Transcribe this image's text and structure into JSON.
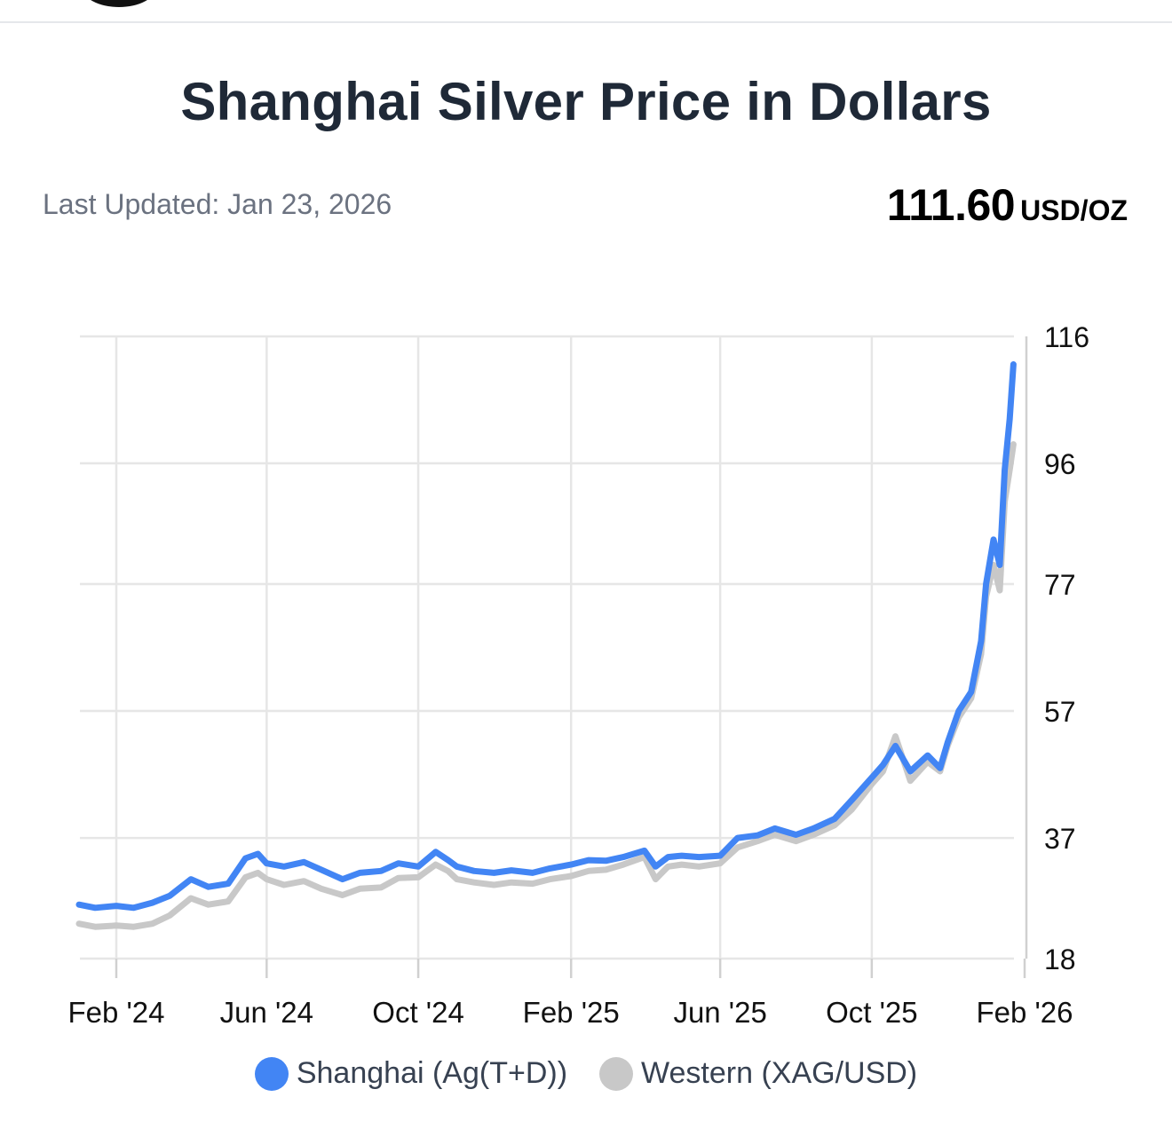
{
  "title": "Shanghai Silver Price in Dollars",
  "last_updated": "Last Updated: Jan 23, 2026",
  "price": {
    "value": "111.60",
    "unit": "USD/OZ"
  },
  "colors": {
    "shanghai": "#4285f4",
    "western": "#c8c8c8",
    "grid": "#e6e6e6",
    "text": "#1f2937"
  },
  "chart_data": {
    "type": "line",
    "title": "Shanghai Silver Price in Dollars",
    "xlabel": "",
    "ylabel": "",
    "y_axis_side": "right",
    "ylim": [
      18,
      116
    ],
    "y_ticks": [
      "116",
      "96",
      "77",
      "57",
      "37",
      "18"
    ],
    "y_tick_values": [
      116,
      96,
      77,
      57,
      37,
      18
    ],
    "x_ticks": [
      "Feb '24",
      "Jun '24",
      "Oct '24",
      "Feb '25",
      "Jun '25",
      "Oct '25",
      "Feb '26"
    ],
    "x_tick_values": [
      "2024-02-01",
      "2024-06-01",
      "2024-10-01",
      "2025-02-01",
      "2025-06-01",
      "2025-10-01",
      "2026-02-01"
    ],
    "xlim": [
      "2024-01-02",
      "2026-02-01"
    ],
    "grid": true,
    "legend": "bottom",
    "series": [
      {
        "name": "Shanghai (Ag(T+D))",
        "color": "#4285f4",
        "x": [
          "2024-01-02",
          "2024-01-15",
          "2024-02-01",
          "2024-02-15",
          "2024-03-01",
          "2024-03-15",
          "2024-04-01",
          "2024-04-15",
          "2024-05-01",
          "2024-05-15",
          "2024-05-25",
          "2024-06-01",
          "2024-06-15",
          "2024-07-01",
          "2024-07-15",
          "2024-08-01",
          "2024-08-15",
          "2024-09-01",
          "2024-09-15",
          "2024-10-01",
          "2024-10-15",
          "2024-10-25",
          "2024-11-01",
          "2024-11-15",
          "2024-12-01",
          "2024-12-15",
          "2025-01-01",
          "2025-01-15",
          "2025-02-01",
          "2025-02-15",
          "2025-03-01",
          "2025-03-15",
          "2025-04-01",
          "2025-04-10",
          "2025-04-20",
          "2025-05-01",
          "2025-05-15",
          "2025-06-01",
          "2025-06-15",
          "2025-07-01",
          "2025-07-15",
          "2025-08-01",
          "2025-08-15",
          "2025-09-01",
          "2025-09-15",
          "2025-10-01",
          "2025-10-10",
          "2025-10-20",
          "2025-11-01",
          "2025-11-15",
          "2025-11-25",
          "2025-12-01",
          "2025-12-10",
          "2025-12-20",
          "2025-12-28",
          "2026-01-01",
          "2026-01-07",
          "2026-01-12",
          "2026-01-16",
          "2026-01-20",
          "2026-01-23"
        ],
        "y": [
          26.5,
          26.0,
          26.3,
          26.0,
          26.8,
          27.9,
          30.5,
          29.3,
          29.8,
          33.8,
          34.5,
          33.0,
          32.5,
          33.2,
          32.0,
          30.5,
          31.5,
          31.8,
          33.0,
          32.5,
          34.8,
          33.5,
          32.5,
          31.8,
          31.5,
          31.9,
          31.5,
          32.2,
          32.8,
          33.5,
          33.4,
          34.0,
          35.0,
          32.5,
          34.0,
          34.2,
          34.0,
          34.2,
          37.0,
          37.4,
          38.5,
          37.5,
          38.5,
          40.0,
          43.0,
          46.5,
          48.5,
          51.5,
          47.5,
          50.0,
          48.0,
          52.0,
          57.0,
          60.0,
          68.0,
          77.0,
          84.0,
          80.0,
          95.0,
          103.0,
          111.6
        ]
      },
      {
        "name": "Western (XAG/USD)",
        "color": "#c8c8c8",
        "x": [
          "2024-01-02",
          "2024-01-15",
          "2024-02-01",
          "2024-02-15",
          "2024-03-01",
          "2024-03-15",
          "2024-04-01",
          "2024-04-15",
          "2024-05-01",
          "2024-05-15",
          "2024-05-25",
          "2024-06-01",
          "2024-06-15",
          "2024-07-01",
          "2024-07-15",
          "2024-08-01",
          "2024-08-15",
          "2024-09-01",
          "2024-09-15",
          "2024-10-01",
          "2024-10-15",
          "2024-10-25",
          "2024-11-01",
          "2024-11-15",
          "2024-12-01",
          "2024-12-15",
          "2025-01-01",
          "2025-01-15",
          "2025-02-01",
          "2025-02-15",
          "2025-03-01",
          "2025-03-15",
          "2025-04-01",
          "2025-04-10",
          "2025-04-20",
          "2025-05-01",
          "2025-05-15",
          "2025-06-01",
          "2025-06-15",
          "2025-07-01",
          "2025-07-15",
          "2025-08-01",
          "2025-08-15",
          "2025-09-01",
          "2025-09-15",
          "2025-10-01",
          "2025-10-10",
          "2025-10-20",
          "2025-11-01",
          "2025-11-15",
          "2025-11-25",
          "2025-12-01",
          "2025-12-10",
          "2025-12-20",
          "2025-12-28",
          "2026-01-01",
          "2026-01-07",
          "2026-01-12",
          "2026-01-16",
          "2026-01-20",
          "2026-01-23"
        ],
        "y": [
          23.5,
          23.0,
          23.2,
          23.0,
          23.5,
          24.8,
          27.5,
          26.5,
          27.0,
          30.8,
          31.5,
          30.5,
          29.6,
          30.2,
          29.0,
          28.0,
          29.0,
          29.2,
          30.7,
          30.8,
          32.8,
          31.8,
          30.5,
          30.0,
          29.6,
          30.0,
          29.8,
          30.5,
          31.0,
          31.8,
          32.0,
          32.8,
          34.0,
          30.5,
          32.5,
          32.8,
          32.5,
          33.0,
          35.5,
          36.5,
          37.5,
          36.5,
          37.5,
          39.0,
          41.5,
          45.5,
          47.5,
          53.0,
          46.0,
          49.0,
          47.5,
          51.5,
          56.0,
          59.0,
          66.0,
          75.0,
          80.0,
          76.0,
          90.0,
          95.0,
          99.0
        ]
      }
    ]
  },
  "legend_items": [
    {
      "label": "Shanghai (Ag(T+D))",
      "color": "#4285f4"
    },
    {
      "label": "Western (XAG/USD)",
      "color": "#c8c8c8"
    }
  ]
}
